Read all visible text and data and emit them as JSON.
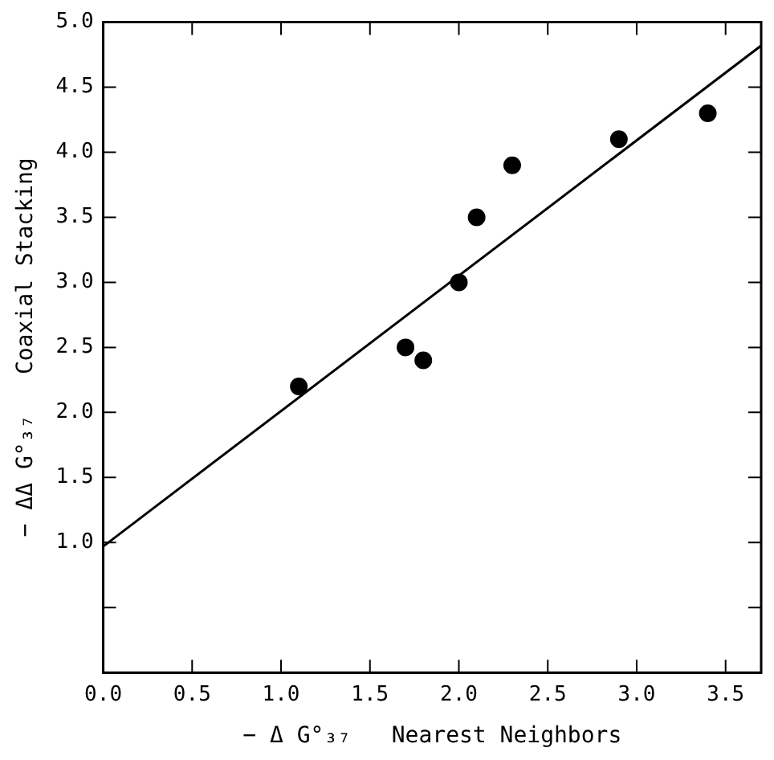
{
  "chart_data": {
    "type": "scatter",
    "xlabel": "− Δ G°₃₇   Nearest Neighbors",
    "ylabel": "− ΔΔ G°₃₇   Coaxial Stacking",
    "series": [
      {
        "type": "scatter",
        "color": "#000000",
        "marker": "circle",
        "x": [
          1.1,
          1.7,
          1.8,
          2.0,
          2.1,
          2.3,
          2.9,
          3.4
        ],
        "values": [
          2.2,
          2.5,
          2.4,
          3.0,
          3.5,
          3.9,
          4.1,
          4.3
        ]
      },
      {
        "type": "line",
        "color": "#000000",
        "marker": "none",
        "line_style": "solid",
        "x": [
          0,
          3.7
        ],
        "values": [
          0.97,
          4.82
        ]
      }
    ],
    "xlim": [
      0,
      3.7
    ],
    "ylim": [
      0,
      5
    ],
    "xticks": [
      {
        "value": 0,
        "label": "0.0"
      },
      {
        "value": 0.5,
        "label": "0.5"
      },
      {
        "value": 1,
        "label": "1.0"
      },
      {
        "value": 1.5,
        "label": "1.5"
      },
      {
        "value": 2,
        "label": "2.0"
      },
      {
        "value": 2.5,
        "label": "2.5"
      },
      {
        "value": 3,
        "label": "3.0"
      },
      {
        "value": 3.5,
        "label": "3.5"
      }
    ],
    "yticks": [
      {
        "value": 0.5,
        "label": null
      },
      {
        "value": 1,
        "label": "1.0"
      },
      {
        "value": 1.5,
        "label": "1.5"
      },
      {
        "value": 2,
        "label": "2.0"
      },
      {
        "value": 2.5,
        "label": "2.5"
      },
      {
        "value": 3,
        "label": "3.0"
      },
      {
        "value": 3.5,
        "label": "3.5"
      },
      {
        "value": 4,
        "label": "4.0"
      },
      {
        "value": 4.5,
        "label": "4.5"
      },
      {
        "value": 5,
        "label": "5.0"
      }
    ],
    "grid": false,
    "legend": false
  }
}
